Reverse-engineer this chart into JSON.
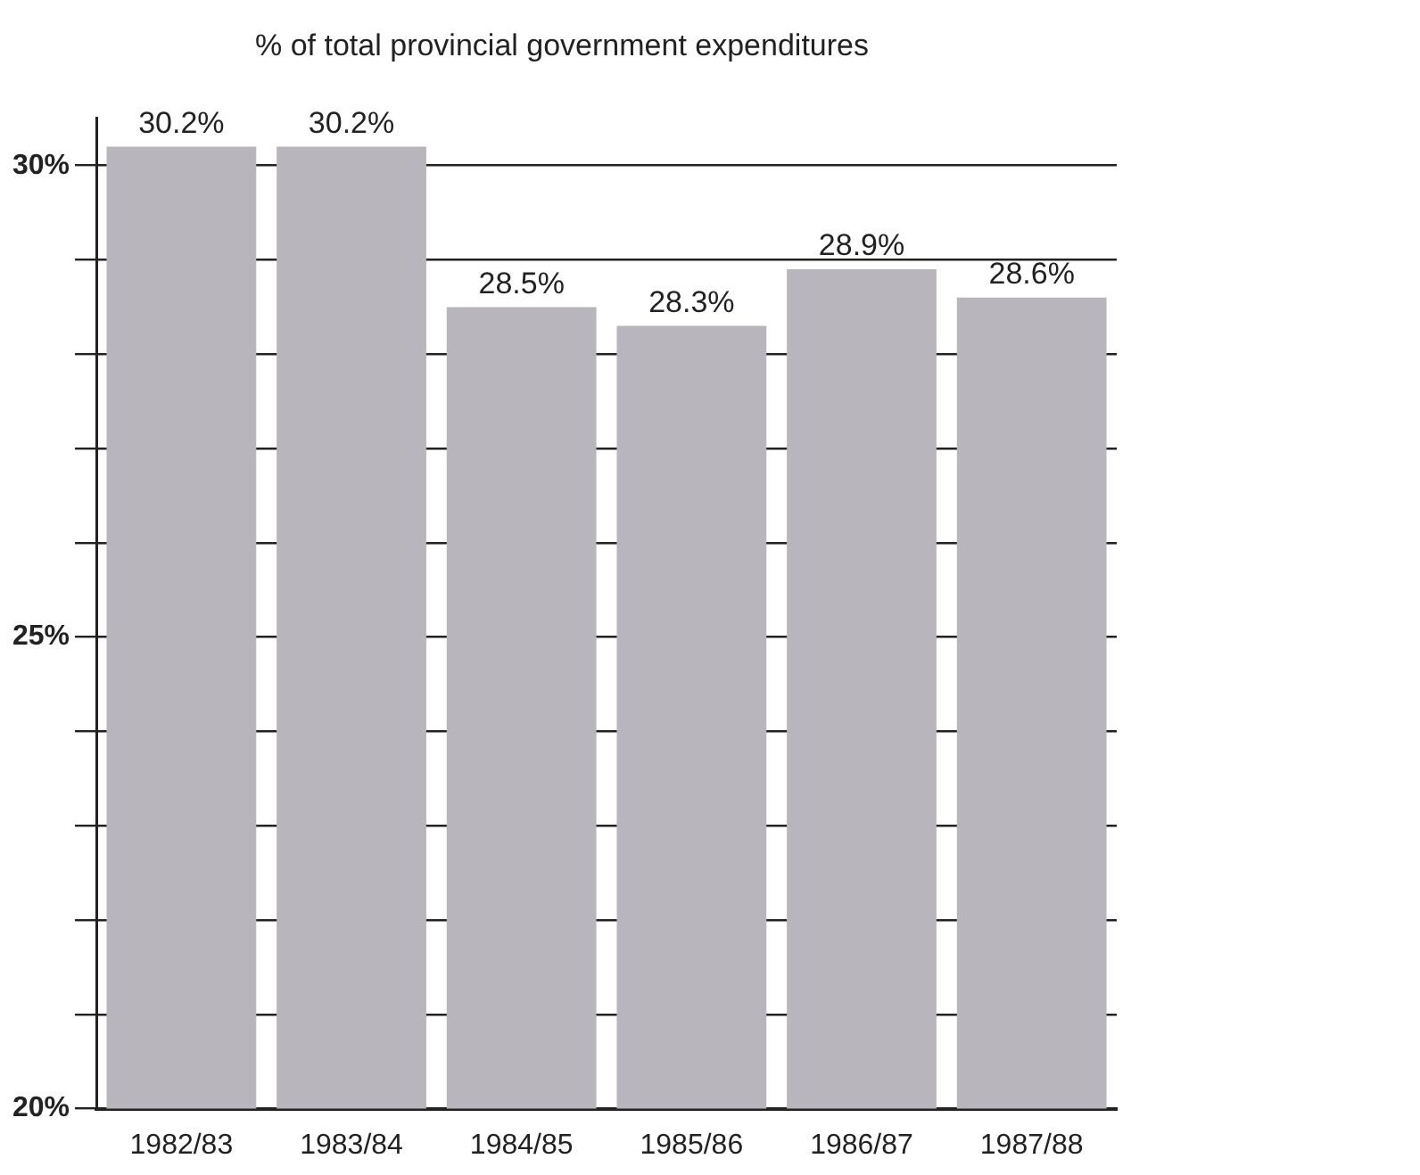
{
  "chart_data": {
    "type": "bar",
    "title": "% of total provincial government expenditures",
    "categories": [
      "1982/83",
      "1983/84",
      "1984/85",
      "1985/86",
      "1986/87",
      "1987/88"
    ],
    "values": [
      30.2,
      30.2,
      28.5,
      28.3,
      28.9,
      28.6
    ],
    "value_labels": [
      "30.2%",
      "30.2%",
      "28.5%",
      "28.3%",
      "28.9%",
      "28.6%"
    ],
    "color": "#b9b5bd",
    "ylim": [
      20,
      30.5
    ],
    "yticks": [
      {
        "value": 20,
        "label": "20%"
      },
      {
        "value": 21,
        "label": null
      },
      {
        "value": 22,
        "label": null
      },
      {
        "value": 23,
        "label": null
      },
      {
        "value": 24,
        "label": null
      },
      {
        "value": 25,
        "label": "25%"
      },
      {
        "value": 26,
        "label": null
      },
      {
        "value": 27,
        "label": null
      },
      {
        "value": 28,
        "label": null
      },
      {
        "value": 29,
        "label": null
      },
      {
        "value": 30,
        "label": "30%"
      }
    ],
    "grid": "y"
  }
}
